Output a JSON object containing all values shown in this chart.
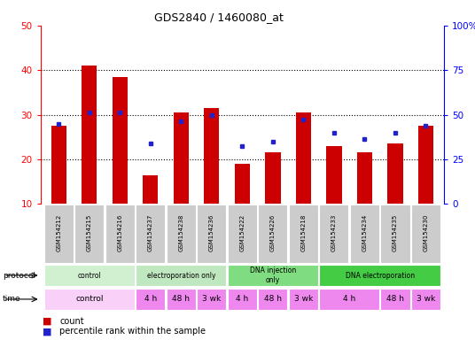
{
  "title": "GDS2840 / 1460080_at",
  "samples": [
    "GSM154212",
    "GSM154215",
    "GSM154216",
    "GSM154237",
    "GSM154238",
    "GSM154236",
    "GSM154222",
    "GSM154226",
    "GSM154218",
    "GSM154233",
    "GSM154234",
    "GSM154235",
    "GSM154230"
  ],
  "count_values": [
    27.5,
    41.0,
    38.5,
    16.5,
    30.5,
    31.5,
    19.0,
    21.5,
    30.5,
    23.0,
    21.5,
    23.5,
    27.5
  ],
  "percentile_values": [
    28.0,
    30.5,
    30.5,
    23.5,
    28.5,
    30.0,
    23.0,
    24.0,
    29.0,
    26.0,
    24.5,
    26.0,
    27.5
  ],
  "ylim_left": [
    10,
    50
  ],
  "ylim_right": [
    0,
    100
  ],
  "yticks_left": [
    10,
    20,
    30,
    40,
    50
  ],
  "yticks_right": [
    0,
    25,
    50,
    75,
    100
  ],
  "ytick_labels_right": [
    "0",
    "25",
    "50",
    "75",
    "100%"
  ],
  "bar_color": "#cc0000",
  "dot_color": "#2222cc",
  "protocol_data": [
    [
      0,
      3,
      "control",
      "#d0f0d0"
    ],
    [
      3,
      6,
      "electroporation only",
      "#c0e8c0"
    ],
    [
      6,
      9,
      "DNA injection\nonly",
      "#80dc80"
    ],
    [
      9,
      13,
      "DNA electroporation",
      "#44cc44"
    ]
  ],
  "time_data": [
    [
      0,
      3,
      "control",
      "#f8d0f8"
    ],
    [
      3,
      4,
      "4 h",
      "#ee88ee"
    ],
    [
      4,
      5,
      "48 h",
      "#ee88ee"
    ],
    [
      5,
      6,
      "3 wk",
      "#ee88ee"
    ],
    [
      6,
      7,
      "4 h",
      "#ee88ee"
    ],
    [
      7,
      8,
      "48 h",
      "#ee88ee"
    ],
    [
      8,
      9,
      "3 wk",
      "#ee88ee"
    ],
    [
      9,
      11,
      "4 h",
      "#ee88ee"
    ],
    [
      11,
      12,
      "48 h",
      "#ee88ee"
    ],
    [
      12,
      13,
      "3 wk",
      "#ee88ee"
    ]
  ],
  "legend_count": "count",
  "legend_pct": "percentile rank within the sample",
  "bar_width": 0.5,
  "sample_box_color": "#cccccc",
  "xlim": [
    -0.6,
    12.6
  ]
}
